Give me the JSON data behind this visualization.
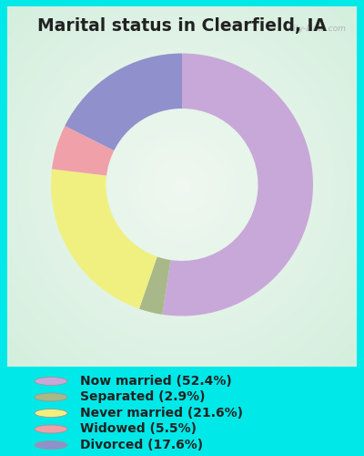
{
  "title": "Marital status in Clearfield, IA",
  "slices": [
    {
      "label": "Now married (52.4%)",
      "value": 52.4,
      "color": "#c8a8d8"
    },
    {
      "label": "Separated (2.9%)",
      "value": 2.9,
      "color": "#a8b888"
    },
    {
      "label": "Never married (21.6%)",
      "value": 21.6,
      "color": "#f0f080"
    },
    {
      "label": "Widowed (5.5%)",
      "value": 5.5,
      "color": "#f0a0a8"
    },
    {
      "label": "Divorced (17.6%)",
      "value": 17.6,
      "color": "#9090cc"
    }
  ],
  "bg_outer": "#00e8e8",
  "title_color": "#222222",
  "title_fontsize": 13.5,
  "legend_fontsize": 10,
  "watermark": "City-Data.com"
}
